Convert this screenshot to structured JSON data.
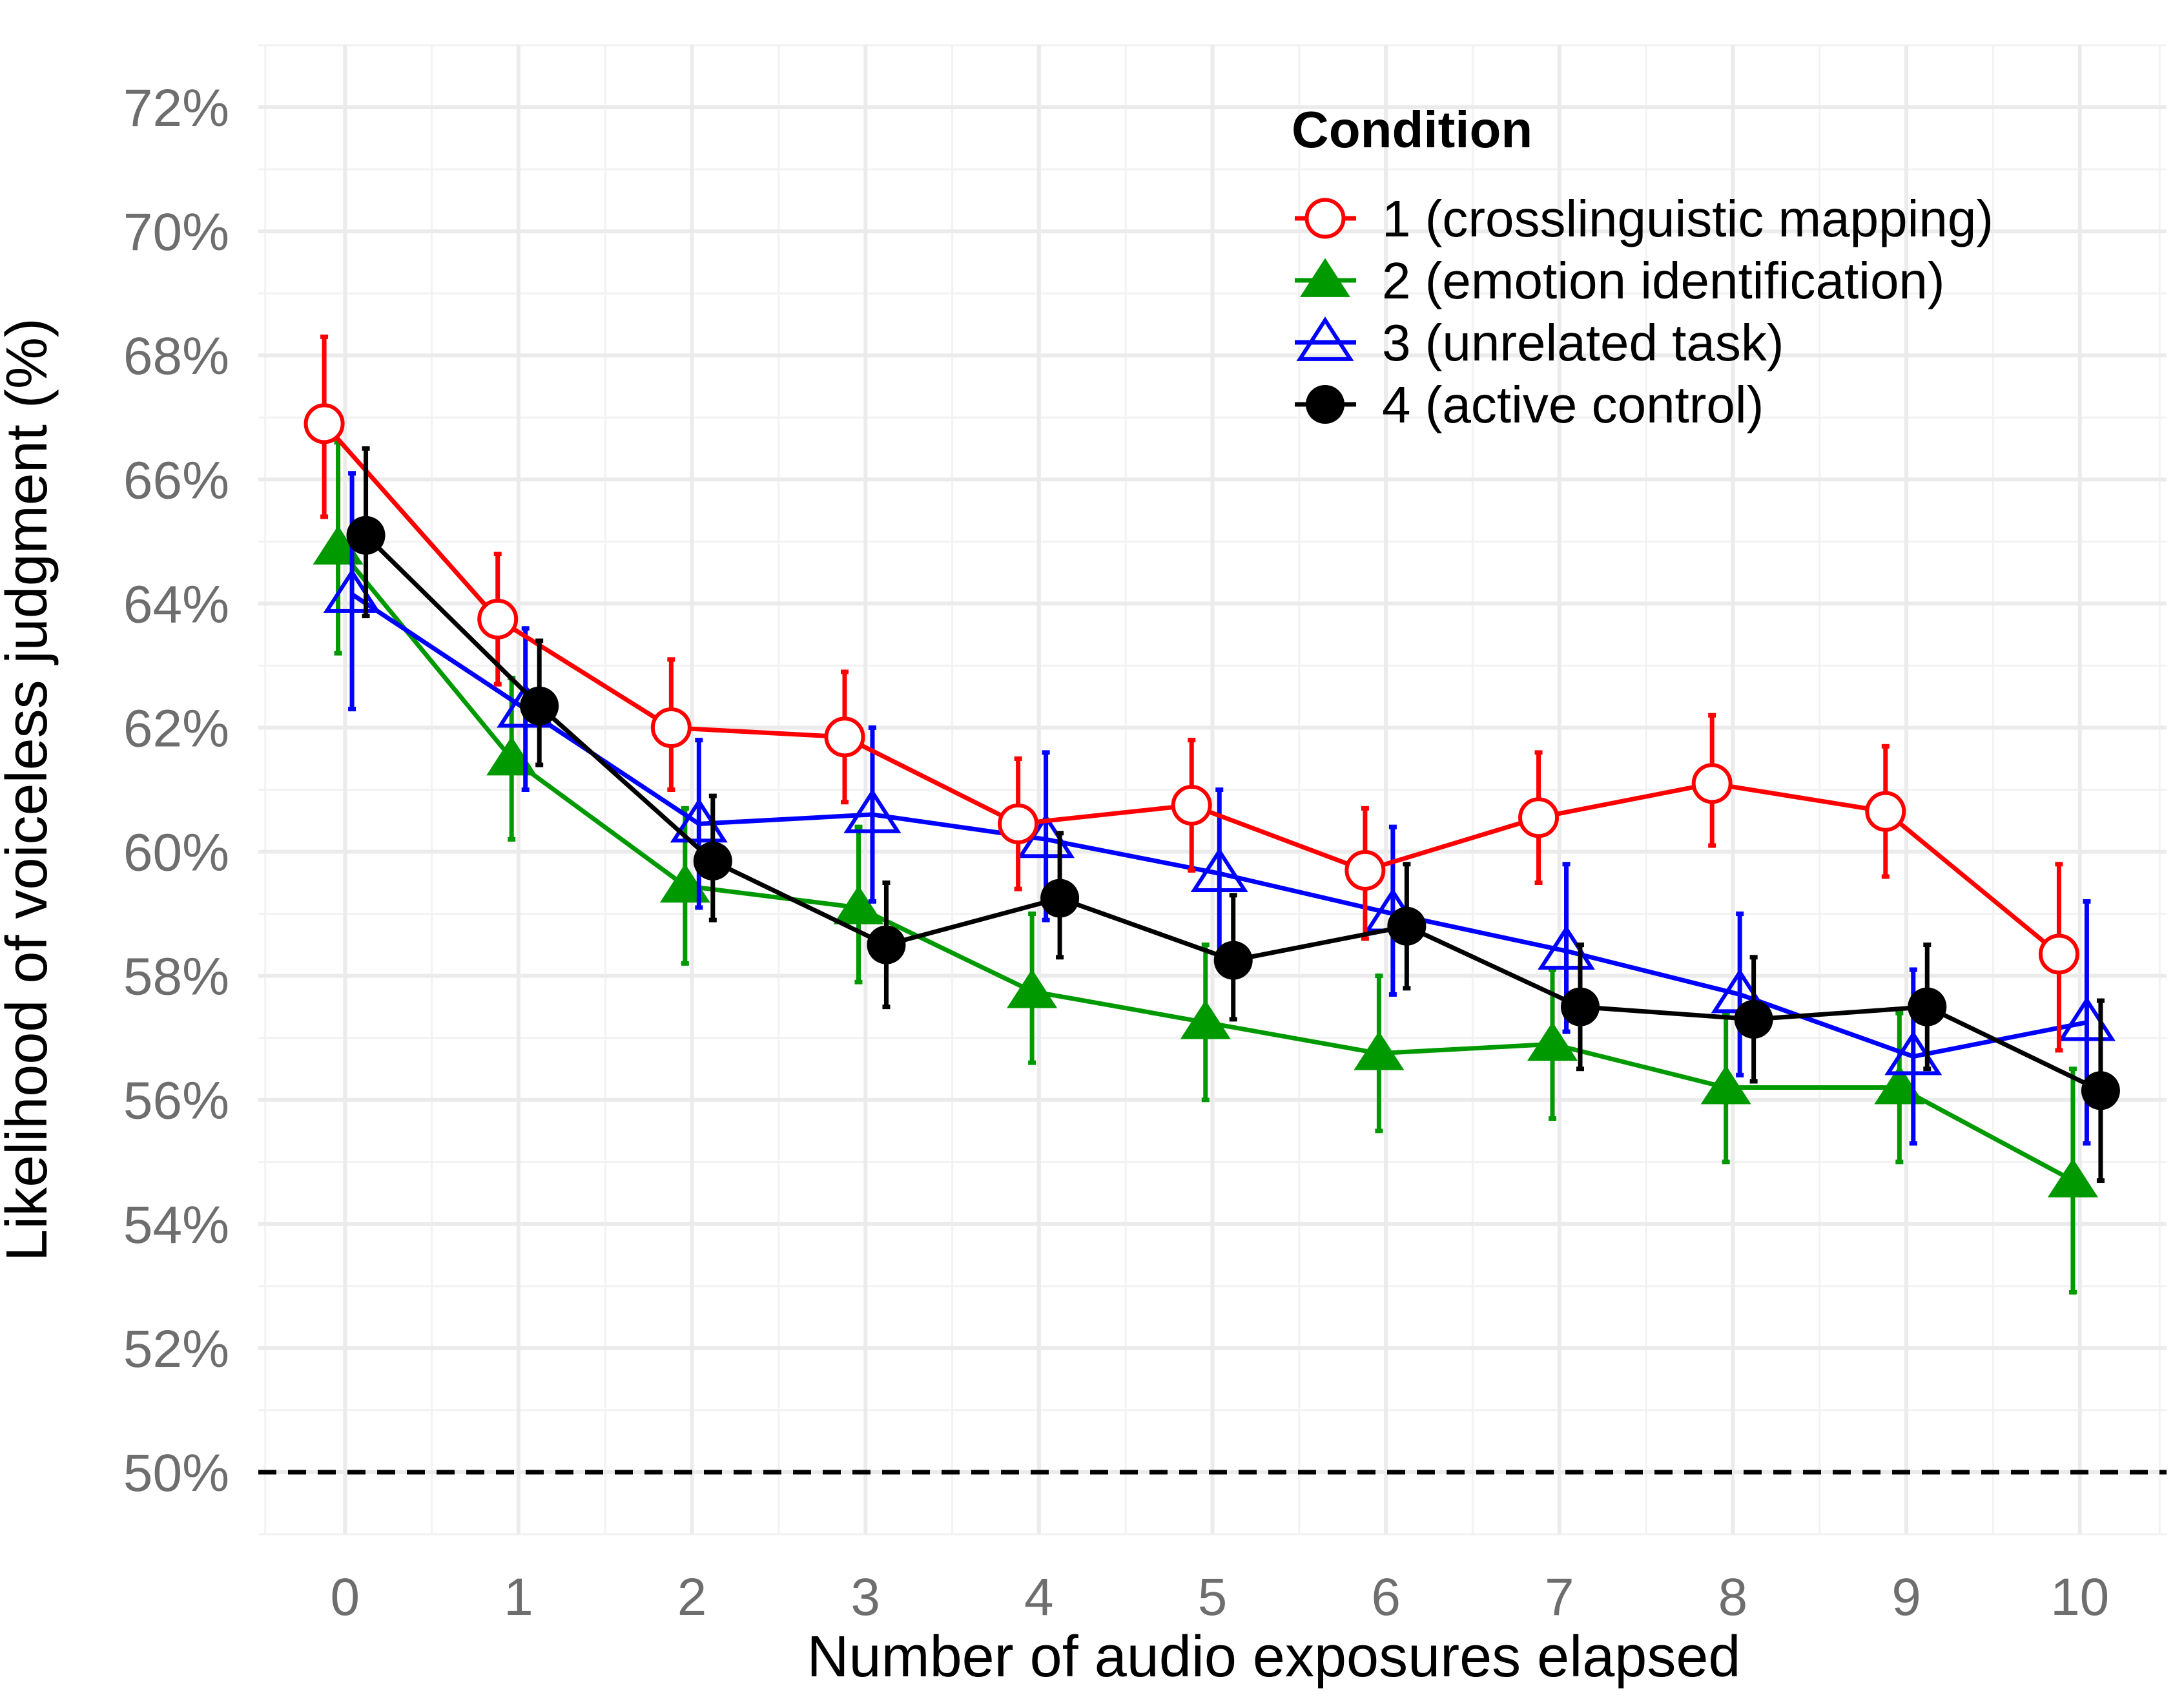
{
  "chart_data": {
    "type": "line",
    "title": "",
    "xlabel": "Number of audio exposures elapsed",
    "ylabel": "Likelihood of voiceless judgment (%)",
    "x": [
      0,
      1,
      2,
      3,
      4,
      5,
      6,
      7,
      8,
      9,
      10
    ],
    "x_tick_labels": [
      "0",
      "1",
      "2",
      "3",
      "4",
      "5",
      "6",
      "7",
      "8",
      "9",
      "10"
    ],
    "xlim": [
      -0.5,
      10.5
    ],
    "ylim": [
      49,
      73
    ],
    "y_ticks": [
      50,
      52,
      54,
      56,
      58,
      60,
      62,
      64,
      66,
      68,
      70,
      72
    ],
    "y_tick_labels": [
      "50%",
      "52%",
      "54%",
      "56%",
      "58%",
      "60%",
      "62%",
      "64%",
      "66%",
      "68%",
      "70%",
      "72%"
    ],
    "grid": true,
    "reference_line": {
      "y": 50,
      "style": "dashed"
    },
    "legend": {
      "title": "Condition",
      "position": "top-right"
    },
    "series": [
      {
        "name": "1 (crosslinguistic mapping)",
        "color": "#ff0000",
        "marker": "open-circle",
        "values": [
          66.9,
          63.75,
          62.0,
          61.85,
          60.45,
          60.75,
          59.7,
          60.55,
          61.1,
          60.65,
          58.35
        ],
        "lower": [
          65.4,
          62.7,
          61.0,
          60.8,
          59.4,
          59.7,
          58.6,
          59.5,
          60.1,
          59.6,
          56.8
        ],
        "upper": [
          68.3,
          64.8,
          63.1,
          62.9,
          61.5,
          61.8,
          60.7,
          61.6,
          62.2,
          61.7,
          59.8
        ]
      },
      {
        "name": "2 (emotion identification)",
        "color": "#009900",
        "marker": "filled-triangle",
        "values": [
          64.9,
          61.5,
          59.45,
          59.1,
          57.75,
          57.25,
          56.75,
          56.9,
          56.2,
          56.2,
          54.7
        ],
        "lower": [
          63.2,
          60.2,
          58.2,
          57.9,
          56.6,
          56.0,
          55.5,
          55.7,
          55.0,
          55.0,
          52.9
        ],
        "upper": [
          66.6,
          62.8,
          60.7,
          60.4,
          59.0,
          58.5,
          58.0,
          58.1,
          57.4,
          57.4,
          56.5
        ]
      },
      {
        "name": "3 (unrelated task)",
        "color": "#0000ff",
        "marker": "open-triangle",
        "values": [
          64.15,
          62.3,
          60.45,
          60.6,
          60.2,
          59.65,
          59.0,
          58.4,
          57.7,
          56.7,
          57.25
        ],
        "lower": [
          62.3,
          61.0,
          59.1,
          59.2,
          58.9,
          58.3,
          57.7,
          57.1,
          56.4,
          55.3,
          55.3
        ],
        "upper": [
          66.1,
          63.6,
          61.8,
          62.0,
          61.6,
          61.0,
          60.4,
          59.8,
          59.0,
          58.1,
          59.2
        ]
      },
      {
        "name": "4 (active control)",
        "color": "#000000",
        "marker": "filled-circle",
        "values": [
          65.1,
          62.35,
          59.85,
          58.5,
          59.25,
          58.25,
          58.8,
          57.5,
          57.3,
          57.5,
          56.15
        ],
        "lower": [
          63.8,
          61.4,
          58.9,
          57.5,
          58.3,
          57.3,
          57.8,
          56.5,
          56.3,
          56.5,
          54.7
        ],
        "upper": [
          66.5,
          63.4,
          60.9,
          59.5,
          60.3,
          59.3,
          59.8,
          58.5,
          58.3,
          58.5,
          57.6
        ]
      }
    ]
  }
}
